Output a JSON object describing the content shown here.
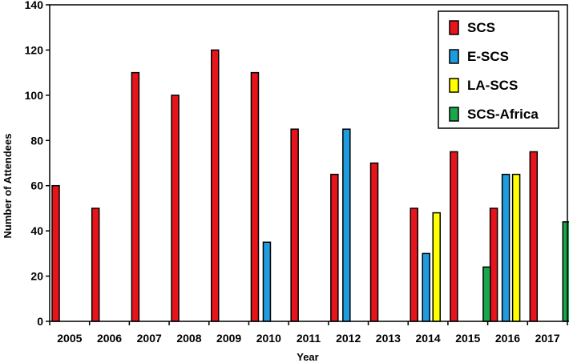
{
  "chart_data": {
    "type": "bar",
    "title": "",
    "xlabel": "Year",
    "ylabel": "Number of Attendees",
    "ylim": [
      0,
      140
    ],
    "yticks": [
      0,
      20,
      40,
      60,
      80,
      100,
      120,
      140
    ],
    "grid": false,
    "legend_position": "top-right",
    "categories": [
      "2005",
      "2006",
      "2007",
      "2008",
      "2009",
      "2010",
      "2011",
      "2012",
      "2013",
      "2014",
      "2015",
      "2016",
      "2017"
    ],
    "series": [
      {
        "name": "SCS",
        "color": "#e8141c",
        "values": [
          60,
          50,
          110,
          100,
          120,
          110,
          85,
          65,
          70,
          50,
          75,
          50,
          75
        ]
      },
      {
        "name": "E-SCS",
        "color": "#1f9be0",
        "values": [
          null,
          null,
          null,
          null,
          null,
          35,
          null,
          85,
          null,
          30,
          null,
          65,
          null
        ]
      },
      {
        "name": "LA-SCS",
        "color": "#ffff00",
        "values": [
          null,
          null,
          null,
          null,
          null,
          null,
          null,
          null,
          null,
          48,
          null,
          65,
          null
        ]
      },
      {
        "name": "SCS-Africa",
        "color": "#1aa64a",
        "values": [
          null,
          null,
          null,
          null,
          null,
          null,
          null,
          null,
          null,
          null,
          24,
          null,
          44
        ]
      }
    ]
  }
}
